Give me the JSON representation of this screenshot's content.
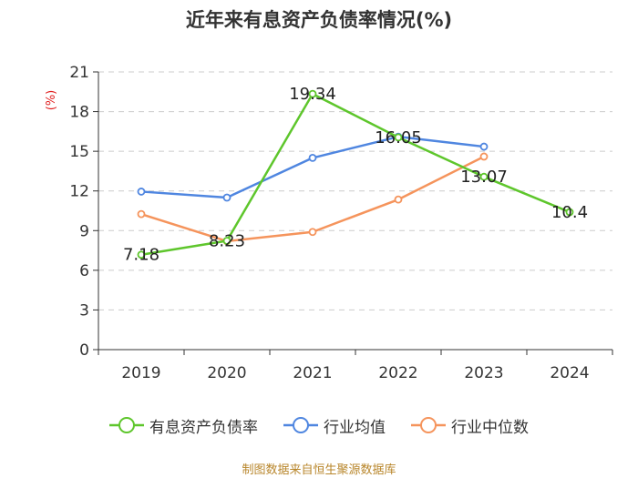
{
  "title": "近年来有息资产负债率情况(%)",
  "source_note": "制图数据来自恒生聚源数据库",
  "colors": {
    "debt_ratio": "#5ec62c",
    "industry_mean": "#4f86e0",
    "industry_median": "#f5945c",
    "unit_label": "#e02020",
    "axis": "#333333",
    "grid": "#cccccc"
  },
  "chart_data": {
    "type": "line",
    "title": "近年来有息资产负债率情况(%)",
    "ylabel": "(%)",
    "xlabel": "",
    "categories": [
      "2019",
      "2020",
      "2021",
      "2022",
      "2023",
      "2024"
    ],
    "ylim": [
      0,
      21
    ],
    "yticks": [
      0,
      3,
      6,
      9,
      12,
      15,
      18,
      21
    ],
    "grid": true,
    "legend_position": "bottom",
    "series": [
      {
        "name": "有息资产负债率",
        "color_key": "debt_ratio",
        "show_labels": true,
        "values": [
          7.18,
          8.23,
          19.34,
          16.05,
          13.07,
          10.4
        ],
        "labels": [
          "7.18",
          "8.23",
          "19.34",
          "16.05",
          "13.07",
          "10.4"
        ]
      },
      {
        "name": "行业均值",
        "color_key": "industry_mean",
        "show_labels": false,
        "values": [
          11.95,
          11.5,
          14.5,
          16.1,
          15.35,
          null
        ]
      },
      {
        "name": "行业中位数",
        "color_key": "industry_median",
        "show_labels": false,
        "values": [
          10.25,
          8.2,
          8.9,
          11.35,
          14.6,
          null
        ]
      }
    ]
  }
}
